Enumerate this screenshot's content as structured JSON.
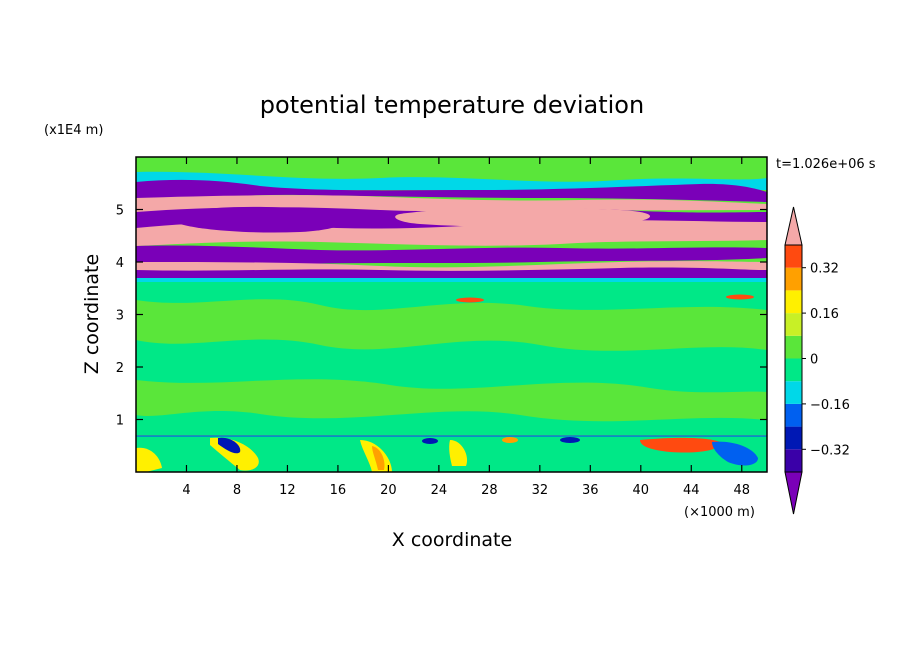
{
  "chart_data": {
    "type": "heatmap",
    "title": "potential temperature deviation",
    "xlabel": "X coordinate",
    "ylabel": "Z coordinate",
    "x_unit_label": "(×1000 m)",
    "y_unit_label": "(x1E4 m)",
    "time_label": "t=1.026e+06 s",
    "xlim": [
      0,
      50
    ],
    "ylim": [
      0,
      6
    ],
    "x_ticks": [
      4,
      8,
      12,
      16,
      20,
      24,
      28,
      32,
      36,
      40,
      44,
      48
    ],
    "x_tick_labels": [
      "4",
      "8",
      "12",
      "16",
      "20",
      "24",
      "28",
      "32",
      "36",
      "40",
      "44",
      "48"
    ],
    "y_ticks": [
      1,
      2,
      3,
      4,
      5
    ],
    "y_tick_labels": [
      "1",
      "2",
      "3",
      "4",
      "5"
    ],
    "colorbar": {
      "levels": [
        -0.4,
        -0.32,
        -0.24,
        -0.16,
        -0.08,
        0,
        0.08,
        0.16,
        0.24,
        0.32,
        0.4
      ],
      "tick_values": [
        -0.32,
        -0.16,
        0,
        0.16,
        0.32
      ],
      "tick_labels": [
        "−0.32",
        "−0.16",
        "0",
        "0.16",
        "0.32"
      ],
      "colors": [
        "#7a00b8",
        "#3a00a8",
        "#0018b4",
        "#0060f0",
        "#00d8e8",
        "#00e887",
        "#5ae63a",
        "#c8f026",
        "#fff000",
        "#ffa000",
        "#ff4a10",
        "#f43a3a",
        "#f4a8a8"
      ],
      "extend": "both"
    },
    "layers": [
      {
        "z_range": [
          0,
          0.7
        ],
        "value": 0.02,
        "note_colors": [
          "#00e887",
          "#5ae63a"
        ]
      },
      {
        "z_range": [
          0.7,
          3.6
        ],
        "value": 0.03
      },
      {
        "z_range": [
          3.6,
          3.8
        ],
        "value": 0.42
      },
      {
        "z_range": [
          3.8,
          4.25
        ],
        "value": -0.42
      },
      {
        "z_range": [
          4.25,
          4.5
        ],
        "value": 0.42
      },
      {
        "z_range": [
          4.5,
          4.85
        ],
        "value": -0.42
      },
      {
        "z_range": [
          4.85,
          5.0
        ],
        "value": 0.42
      },
      {
        "z_range": [
          5.0,
          5.15
        ],
        "value": -0.42
      },
      {
        "z_range": [
          5.15,
          5.3
        ],
        "value": 0.0
      },
      {
        "z_range": [
          5.3,
          5.5
        ],
        "value": -0.42
      },
      {
        "z_range": [
          5.5,
          6.0
        ],
        "value": 0.04
      }
    ]
  }
}
